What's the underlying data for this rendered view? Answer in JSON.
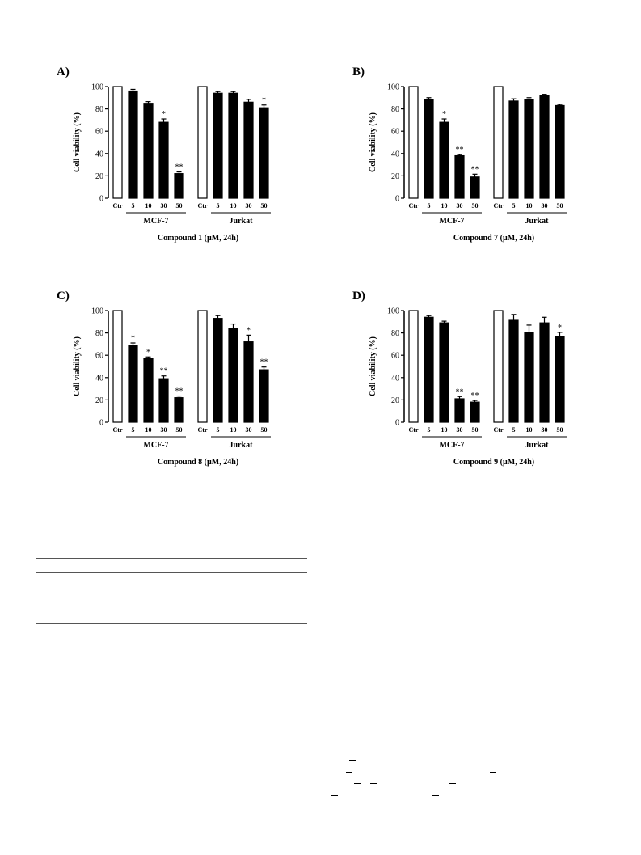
{
  "panels": [
    {
      "label": "A)",
      "ylabel": "Cell viability (%)",
      "xlabel": "Compound 1 (µM, 24h)",
      "groups": [
        "MCF-7",
        "Jurkat"
      ],
      "ylim": [
        0,
        100
      ],
      "yticks": [
        0,
        20,
        40,
        60,
        80,
        100
      ],
      "categories": [
        "Ctr",
        "5",
        "10",
        "30",
        "50"
      ],
      "series": [
        {
          "group": "MCF-7",
          "values": [
            100,
            96,
            85,
            68,
            22
          ],
          "errors": [
            0,
            1.5,
            1.5,
            3,
            1.5
          ],
          "marks": [
            "",
            "",
            "",
            "*",
            "**"
          ]
        },
        {
          "group": "Jurkat",
          "values": [
            100,
            94,
            94,
            86,
            81
          ],
          "errors": [
            0,
            1.5,
            1.5,
            2.5,
            2.5
          ],
          "marks": [
            "",
            "",
            "",
            "",
            "*"
          ]
        }
      ]
    },
    {
      "label": "B)",
      "ylabel": "Cell viability (%)",
      "xlabel": "Compound 7 (µM, 24h)",
      "groups": [
        "MCF-7",
        "Jurkat"
      ],
      "ylim": [
        0,
        100
      ],
      "yticks": [
        0,
        20,
        40,
        60,
        80,
        100
      ],
      "categories": [
        "Ctr",
        "5",
        "10",
        "30",
        "50"
      ],
      "series": [
        {
          "group": "MCF-7",
          "values": [
            100,
            88,
            68,
            38,
            19
          ],
          "errors": [
            0,
            2,
            3,
            1,
            2.5
          ],
          "marks": [
            "",
            "",
            "*",
            "**",
            "**"
          ]
        },
        {
          "group": "Jurkat",
          "values": [
            100,
            87,
            88,
            92,
            83
          ],
          "errors": [
            0,
            2,
            2,
            1,
            1
          ],
          "marks": [
            "",
            "",
            "",
            "",
            ""
          ]
        }
      ]
    },
    {
      "label": "C)",
      "ylabel": "Cell viability (%)",
      "xlabel": "Compound 8 (µM, 24h)",
      "groups": [
        "MCF-7",
        "Jurkat"
      ],
      "ylim": [
        0,
        100
      ],
      "yticks": [
        0,
        20,
        40,
        60,
        80,
        100
      ],
      "categories": [
        "Ctr",
        "5",
        "10",
        "30",
        "50"
      ],
      "series": [
        {
          "group": "MCF-7",
          "values": [
            100,
            69,
            57,
            39,
            22
          ],
          "errors": [
            0,
            2,
            1.5,
            2.5,
            1.5
          ],
          "marks": [
            "",
            "*",
            "*",
            "**",
            "**"
          ]
        },
        {
          "group": "Jurkat",
          "values": [
            100,
            93,
            84,
            72,
            47
          ],
          "errors": [
            0,
            2.5,
            4,
            6,
            2.5
          ],
          "marks": [
            "",
            "",
            "",
            "*",
            "**"
          ]
        }
      ]
    },
    {
      "label": "D)",
      "ylabel": "Cell viability (%)",
      "xlabel": "Compound 9 (µM, 24h)",
      "groups": [
        "MCF-7",
        "Jurkat"
      ],
      "ylim": [
        0,
        100
      ],
      "yticks": [
        0,
        20,
        40,
        60,
        80,
        100
      ],
      "categories": [
        "Ctr",
        "5",
        "10",
        "30",
        "50"
      ],
      "series": [
        {
          "group": "MCF-7",
          "values": [
            100,
            94,
            89,
            21,
            18
          ],
          "errors": [
            0,
            1.5,
            1.5,
            2,
            1.5
          ],
          "marks": [
            "",
            "",
            "",
            "**",
            "**"
          ]
        },
        {
          "group": "Jurkat",
          "values": [
            100,
            92,
            80,
            89,
            77
          ],
          "errors": [
            0,
            4.5,
            7,
            5,
            3.5
          ],
          "marks": [
            "",
            "",
            "",
            "",
            "*"
          ]
        }
      ]
    }
  ],
  "chart_data": [
    {
      "type": "bar",
      "title": "A)",
      "xlabel": "Compound 1 (µM, 24h)",
      "ylabel": "Cell viability (%)",
      "categories": [
        "Ctr",
        "5",
        "10",
        "30",
        "50"
      ],
      "ylim": [
        0,
        100
      ],
      "series": [
        {
          "name": "MCF-7",
          "values": [
            100,
            96,
            85,
            68,
            22
          ]
        },
        {
          "name": "Jurkat",
          "values": [
            100,
            94,
            94,
            86,
            81
          ]
        }
      ]
    },
    {
      "type": "bar",
      "title": "B)",
      "xlabel": "Compound 7 (µM, 24h)",
      "ylabel": "Cell viability (%)",
      "categories": [
        "Ctr",
        "5",
        "10",
        "30",
        "50"
      ],
      "ylim": [
        0,
        100
      ],
      "series": [
        {
          "name": "MCF-7",
          "values": [
            100,
            88,
            68,
            38,
            19
          ]
        },
        {
          "name": "Jurkat",
          "values": [
            100,
            87,
            88,
            92,
            83
          ]
        }
      ]
    },
    {
      "type": "bar",
      "title": "C)",
      "xlabel": "Compound 8 (µM, 24h)",
      "ylabel": "Cell viability (%)",
      "categories": [
        "Ctr",
        "5",
        "10",
        "30",
        "50"
      ],
      "ylim": [
        0,
        100
      ],
      "series": [
        {
          "name": "MCF-7",
          "values": [
            100,
            69,
            57,
            39,
            22
          ]
        },
        {
          "name": "Jurkat",
          "values": [
            100,
            93,
            84,
            72,
            47
          ]
        }
      ]
    },
    {
      "type": "bar",
      "title": "D)",
      "xlabel": "Compound 9 (µM, 24h)",
      "ylabel": "Cell viability (%)",
      "categories": [
        "Ctr",
        "5",
        "10",
        "30",
        "50"
      ],
      "ylim": [
        0,
        100
      ],
      "series": [
        {
          "name": "MCF-7",
          "values": [
            100,
            94,
            89,
            21,
            18
          ]
        },
        {
          "name": "Jurkat",
          "values": [
            100,
            92,
            80,
            89,
            77
          ]
        }
      ]
    }
  ]
}
